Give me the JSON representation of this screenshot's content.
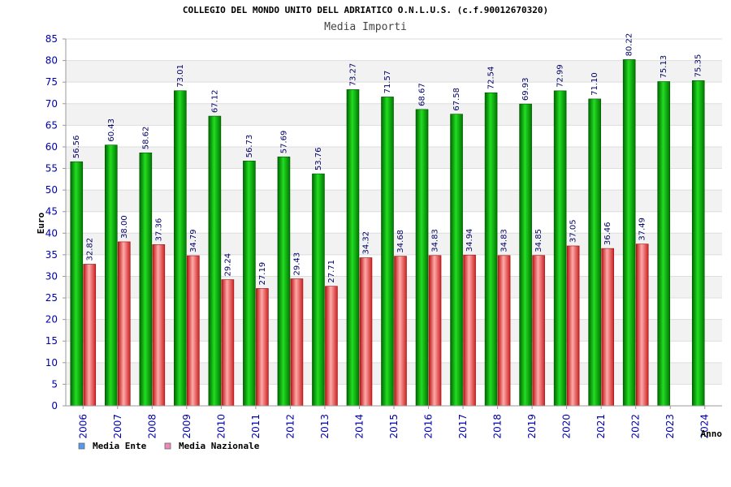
{
  "chart_data": {
    "type": "bar",
    "title": "COLLEGIO DEL MONDO UNITO DELL ADRIATICO O.N.L.U.S. (c.f.90012670320)",
    "subtitle": "Media Importi",
    "ylabel": "Euro",
    "xlabel": "Anno",
    "ylim": [
      0,
      85
    ],
    "ytick_step": 5,
    "grid": true,
    "legend_position": "bottom-left",
    "categories": [
      "2006",
      "2007",
      "2008",
      "2009",
      "2010",
      "2011",
      "2012",
      "2013",
      "2014",
      "2015",
      "2016",
      "2017",
      "2018",
      "2019",
      "2020",
      "2021",
      "2022",
      "2023",
      "2024"
    ],
    "series": [
      {
        "name": "Media Ente",
        "color": "#00aa00",
        "legend_color": "#5599ee",
        "values": [
          56.56,
          60.43,
          58.62,
          73.01,
          67.12,
          56.73,
          57.69,
          53.76,
          73.27,
          71.57,
          68.67,
          67.58,
          72.54,
          69.93,
          72.99,
          71.1,
          80.22,
          75.13,
          75.35
        ],
        "labels": [
          "56.56",
          "60.43",
          "58.62",
          "73.01",
          "67.12",
          "56.73",
          "57.69",
          "53.76",
          "73.27",
          "71.57",
          "68.67",
          "67.58",
          "72.54",
          "69.93",
          "72.99",
          "71.10",
          "80.22",
          "75.13",
          "75.35"
        ]
      },
      {
        "name": "Media Nazionale",
        "color": "#dd2222",
        "legend_color": "#ee88bb",
        "values": [
          32.82,
          38.0,
          37.36,
          34.79,
          29.24,
          27.19,
          29.43,
          27.71,
          34.32,
          34.68,
          34.83,
          34.94,
          34.83,
          34.85,
          37.05,
          36.46,
          37.49,
          null,
          null
        ],
        "labels": [
          "32.82",
          "38.00",
          "37.36",
          "34.79",
          "29.24",
          "27.19",
          "29.43",
          "27.71",
          "34.32",
          "34.68",
          "34.83",
          "34.94",
          "34.83",
          "34.85",
          "37.05",
          "36.46",
          "37.49",
          null,
          null
        ]
      }
    ]
  }
}
